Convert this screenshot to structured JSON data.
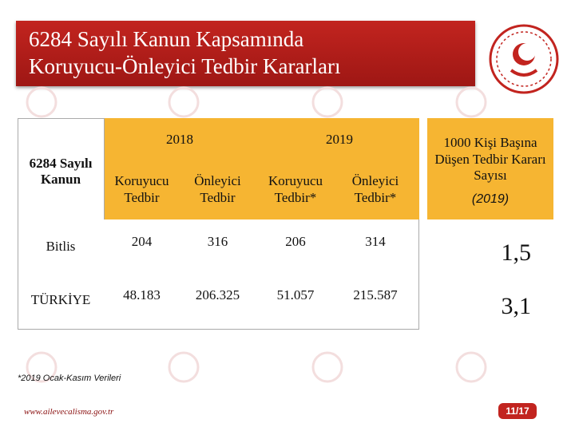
{
  "header": {
    "title": [
      "6284 Sayılı Kanun Kapsamında",
      "Koruyucu-Önleyici Tedbir Kararları"
    ]
  },
  "table": {
    "corner": "6284 Sayılı Kanun",
    "years": [
      "2018",
      "2019"
    ],
    "subheaders": [
      "Koruyucu Tedbir",
      "Önleyici Tedbir",
      "Koruyucu Tedbir*",
      "Önleyici Tedbir*"
    ],
    "rate_header": "1000 Kişi Başına Düşen Tedbir Kararı Sayısı",
    "rate_year": "(2019)",
    "rows": [
      {
        "label": "Bitlis",
        "values": [
          "204",
          "316",
          "206",
          "314"
        ],
        "rate": "1,5"
      },
      {
        "label": "TÜRKİYE",
        "values": [
          "48.183",
          "206.325",
          "51.057",
          "215.587"
        ],
        "rate": "3,1"
      }
    ]
  },
  "footnote": "*2019 Ocak-Kasım Verileri",
  "url": "www.ailevecalisma.gov.tr",
  "page": "11/17"
}
